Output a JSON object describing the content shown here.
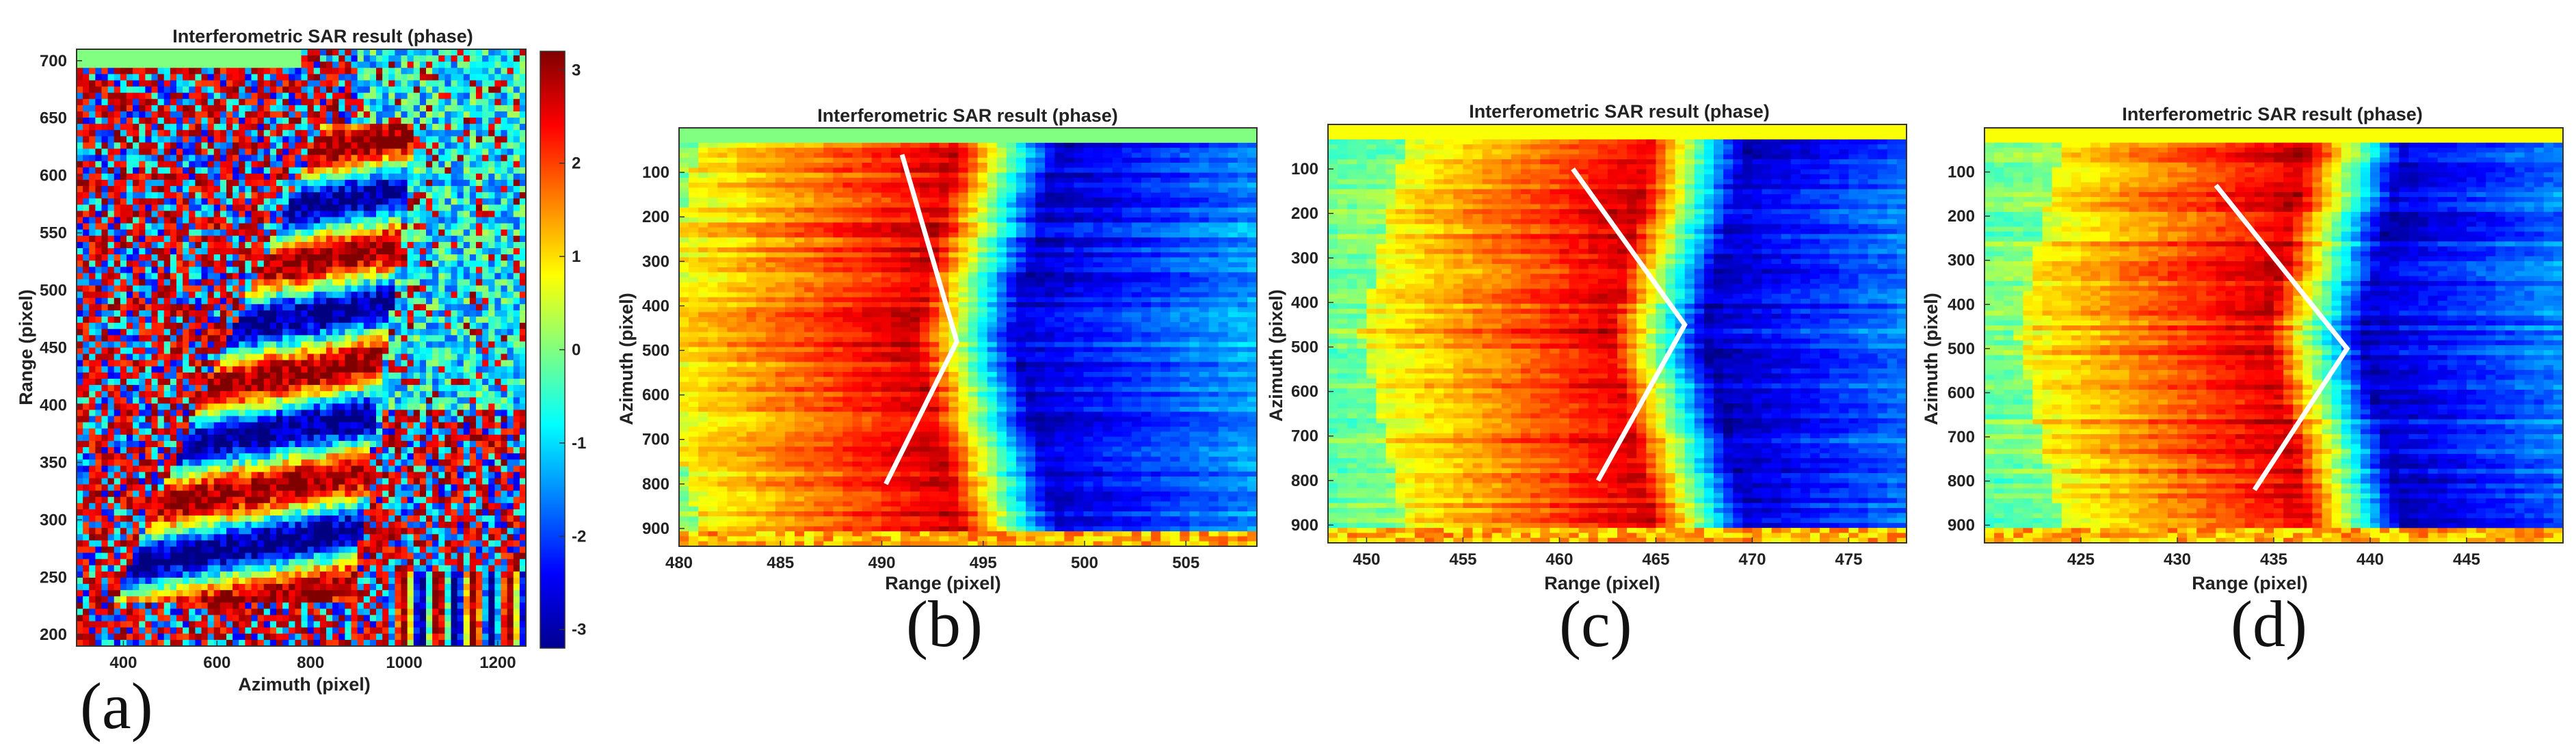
{
  "chart_data": [
    {
      "id": "a",
      "type": "heatmap",
      "title": "Interferometric SAR result (phase)",
      "xlabel": "Azimuth (pixel)",
      "ylabel": "Range (pixel)",
      "panel_label": "(a)",
      "xlim": [
        300,
        1260
      ],
      "ylim": [
        710,
        190
      ],
      "xticks": [
        400,
        600,
        800,
        1000,
        1200
      ],
      "xtick_labels": [
        "400",
        "600",
        "800",
        "1000",
        "1200"
      ],
      "yticks": [
        200,
        250,
        300,
        350,
        400,
        450,
        500,
        550,
        600,
        650,
        700
      ],
      "ytick_labels": [
        "200",
        "250",
        "300",
        "350",
        "400",
        "450",
        "500",
        "550",
        "600",
        "650",
        "700"
      ],
      "colorbar": {
        "range": [
          -3.2,
          3.2
        ],
        "ticks": [
          3,
          2,
          1,
          0,
          -1,
          -2,
          -3
        ],
        "tick_labels": [
          "3",
          "2",
          "1",
          "0",
          "-1",
          "-2",
          "-3"
        ]
      }
    },
    {
      "id": "b",
      "type": "heatmap",
      "title": "Interferometric SAR result (phase)",
      "xlabel": "Range (pixel)",
      "ylabel": "Azimuth (pixel)",
      "panel_label": "(b)",
      "xlim": [
        480,
        508.5
      ],
      "ylim": [
        0,
        940
      ],
      "xticks": [
        480,
        485,
        490,
        495,
        500,
        505
      ],
      "xtick_labels": [
        "480",
        "485",
        "490",
        "495",
        "500",
        "505"
      ],
      "yticks": [
        100,
        200,
        300,
        400,
        500,
        600,
        700,
        800,
        900
      ],
      "ytick_labels": [
        "100",
        "200",
        "300",
        "400",
        "500",
        "600",
        "700",
        "800",
        "900"
      ],
      "center_range": 494,
      "overlay_line": [
        [
          491,
          60
        ],
        [
          493.7,
          480
        ],
        [
          490.2,
          800
        ]
      ]
    },
    {
      "id": "c",
      "type": "heatmap",
      "title": "Interferometric SAR result (phase)",
      "xlabel": "Range (pixel)",
      "ylabel": "Azimuth (pixel)",
      "panel_label": "(c)",
      "xlim": [
        448,
        478
      ],
      "ylim": [
        0,
        940
      ],
      "xticks": [
        450,
        455,
        460,
        465,
        470,
        475
      ],
      "xtick_labels": [
        "450",
        "455",
        "460",
        "465",
        "470",
        "475"
      ],
      "yticks": [
        100,
        200,
        300,
        400,
        500,
        600,
        700,
        800,
        900
      ],
      "ytick_labels": [
        "100",
        "200",
        "300",
        "400",
        "500",
        "600",
        "700",
        "800",
        "900"
      ],
      "center_range": 465,
      "overlay_line": [
        [
          460.7,
          100
        ],
        [
          466.5,
          450
        ],
        [
          462,
          800
        ]
      ]
    },
    {
      "id": "d",
      "type": "heatmap",
      "title": "Interferometric SAR result (phase)",
      "xlabel": "Range (pixel)",
      "ylabel": "Azimuth (pixel)",
      "panel_label": "(d)",
      "xlim": [
        420,
        450
      ],
      "ylim": [
        0,
        940
      ],
      "xticks": [
        425,
        430,
        435,
        440,
        445
      ],
      "xtick_labels": [
        "425",
        "430",
        "435",
        "440",
        "445"
      ],
      "yticks": [
        100,
        200,
        300,
        400,
        500,
        600,
        700,
        800,
        900
      ],
      "ytick_labels": [
        "100",
        "200",
        "300",
        "400",
        "500",
        "600",
        "700",
        "800",
        "900"
      ],
      "center_range": 437,
      "overlay_line": [
        [
          432,
          130
        ],
        [
          438.8,
          500
        ],
        [
          434,
          820
        ]
      ]
    }
  ]
}
